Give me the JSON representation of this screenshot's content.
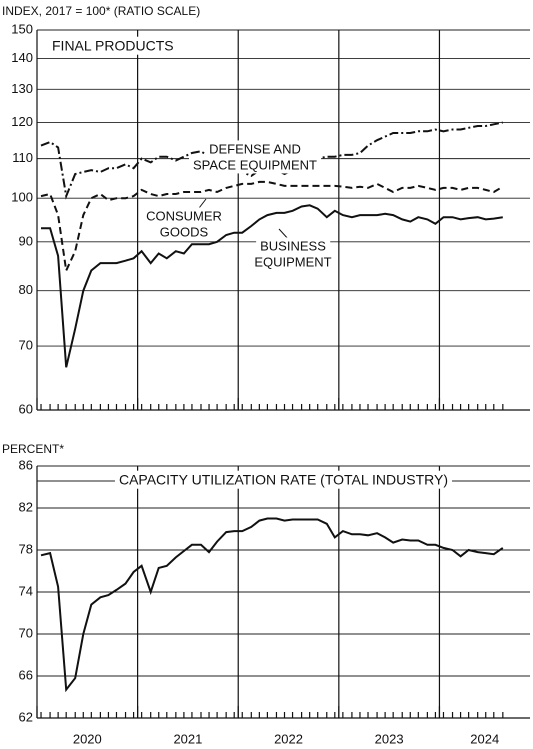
{
  "chart_data": [
    {
      "type": "line",
      "title": "FINAL PRODUCTS",
      "y_label": "INDEX, 2017 = 100* (RATIO SCALE)",
      "log_scale": true,
      "grid": true,
      "x": [
        2020.04,
        2020.13,
        2020.21,
        2020.29,
        2020.38,
        2020.46,
        2020.54,
        2020.63,
        2020.71,
        2020.79,
        2020.88,
        2020.96,
        2021.04,
        2021.13,
        2021.21,
        2021.29,
        2021.38,
        2021.46,
        2021.54,
        2021.63,
        2021.71,
        2021.79,
        2021.88,
        2021.96,
        2022.04,
        2022.13,
        2022.21,
        2022.29,
        2022.38,
        2022.46,
        2022.54,
        2022.63,
        2022.71,
        2022.79,
        2022.88,
        2022.96,
        2023.04,
        2023.13,
        2023.21,
        2023.29,
        2023.38,
        2023.46,
        2023.54,
        2023.63,
        2023.71,
        2023.79,
        2023.88,
        2023.96,
        2024.04,
        2024.13,
        2024.21,
        2024.29,
        2024.38,
        2024.46,
        2024.54,
        2024.63
      ],
      "xlim": [
        2020,
        2024.9
      ],
      "xticks": [
        2020,
        2021,
        2022,
        2023,
        2024
      ],
      "ylim": [
        60,
        150
      ],
      "yticks": [
        60,
        70,
        80,
        90,
        100,
        110,
        120,
        130,
        140,
        150
      ],
      "series": [
        {
          "name": [
            "DEFENSE AND",
            "SPACE EQUIPMENT"
          ],
          "color": "#111",
          "dash": "dashdot",
          "values": [
            113.5,
            114.5,
            113,
            100.5,
            106,
            106.5,
            107,
            106.5,
            107.5,
            107.5,
            108.5,
            107.5,
            110,
            109,
            110.5,
            110.5,
            109.5,
            110.5,
            111.5,
            112,
            110.5,
            109,
            109,
            108.5,
            106.5,
            105.5,
            107,
            108,
            107,
            106,
            107,
            107.5,
            108.5,
            110,
            110.5,
            110.5,
            111,
            111,
            111.5,
            113.5,
            115,
            116,
            117,
            117,
            117,
            117.5,
            117.5,
            118,
            117.5,
            118,
            118,
            118.5,
            119,
            119,
            119.5,
            120
          ]
        },
        {
          "name": [
            "CONSUMER",
            "GOODS"
          ],
          "color": "#111",
          "dash": "dashed",
          "values": [
            100.5,
            101,
            96,
            84,
            88,
            96,
            100,
            101,
            99.5,
            100,
            100,
            100.5,
            102,
            101,
            100.5,
            101,
            101,
            101.5,
            101.5,
            101.5,
            102,
            101.5,
            102.5,
            103,
            103.5,
            103.5,
            104,
            104,
            103.5,
            103,
            103,
            103,
            103,
            103,
            103,
            103,
            102.8,
            102.5,
            102.8,
            102.5,
            103.5,
            102.5,
            101.5,
            102.5,
            102.5,
            103,
            102.5,
            102,
            102.5,
            102.5,
            102,
            102.5,
            102.5,
            102,
            101.5,
            102.8
          ]
        },
        {
          "name": [
            "BUSINESS",
            "EQUIPMENT"
          ],
          "color": "#111",
          "dash": "solid",
          "values": [
            93,
            93,
            87,
            66.5,
            73,
            80,
            84,
            85.5,
            85.5,
            85.5,
            86,
            86.5,
            88,
            85.5,
            87.5,
            86.5,
            88,
            87.5,
            89.5,
            89.5,
            89.5,
            90,
            91.5,
            92,
            92,
            93.5,
            95,
            96,
            96.5,
            96.5,
            97,
            98,
            98.3,
            97.5,
            95.5,
            97,
            96,
            95.5,
            96,
            96,
            96,
            96.3,
            96,
            95,
            94.5,
            95.5,
            95,
            94,
            95.5,
            95.5,
            95,
            95.3,
            95.5,
            95,
            95.2,
            95.5
          ]
        }
      ]
    },
    {
      "type": "line",
      "title": "CAPACITY UTILIZATION RATE (TOTAL INDUSTRY)",
      "y_label": "PERCENT*",
      "log_scale": false,
      "grid": true,
      "x": [
        2020.04,
        2020.13,
        2020.21,
        2020.29,
        2020.38,
        2020.46,
        2020.54,
        2020.63,
        2020.71,
        2020.79,
        2020.88,
        2020.96,
        2021.04,
        2021.13,
        2021.21,
        2021.29,
        2021.38,
        2021.46,
        2021.54,
        2021.63,
        2021.71,
        2021.79,
        2021.88,
        2021.96,
        2022.04,
        2022.13,
        2022.21,
        2022.29,
        2022.38,
        2022.46,
        2022.54,
        2022.63,
        2022.71,
        2022.79,
        2022.88,
        2022.96,
        2023.04,
        2023.13,
        2023.21,
        2023.29,
        2023.38,
        2023.46,
        2023.54,
        2023.63,
        2023.71,
        2023.79,
        2023.88,
        2023.96,
        2024.04,
        2024.13,
        2024.21,
        2024.29,
        2024.38,
        2024.46,
        2024.54,
        2024.63
      ],
      "xlim": [
        2020,
        2024.9
      ],
      "xticks": [
        2020,
        2021,
        2022,
        2023,
        2024
      ],
      "ylim": [
        62,
        86
      ],
      "yticks": [
        62,
        66,
        70,
        74,
        78,
        82,
        86
      ],
      "series": [
        {
          "color": "#111",
          "dash": "solid",
          "values": [
            77.5,
            77.7,
            74.5,
            64.7,
            65.8,
            70,
            72.8,
            73.5,
            73.7,
            74.2,
            74.8,
            75.9,
            76.5,
            74,
            76.3,
            76.5,
            77.3,
            77.9,
            78.5,
            78.5,
            77.8,
            78.8,
            79.7,
            79.8,
            79.8,
            80.2,
            80.8,
            81,
            81,
            80.8,
            80.9,
            80.9,
            80.9,
            80.9,
            80.5,
            79.2,
            79.8,
            79.5,
            79.5,
            79.4,
            79.6,
            79.2,
            78.7,
            79,
            78.9,
            78.9,
            78.5,
            78.5,
            78.2,
            78,
            77.4,
            78,
            77.8,
            77.7,
            77.6,
            78.2
          ]
        }
      ]
    }
  ]
}
